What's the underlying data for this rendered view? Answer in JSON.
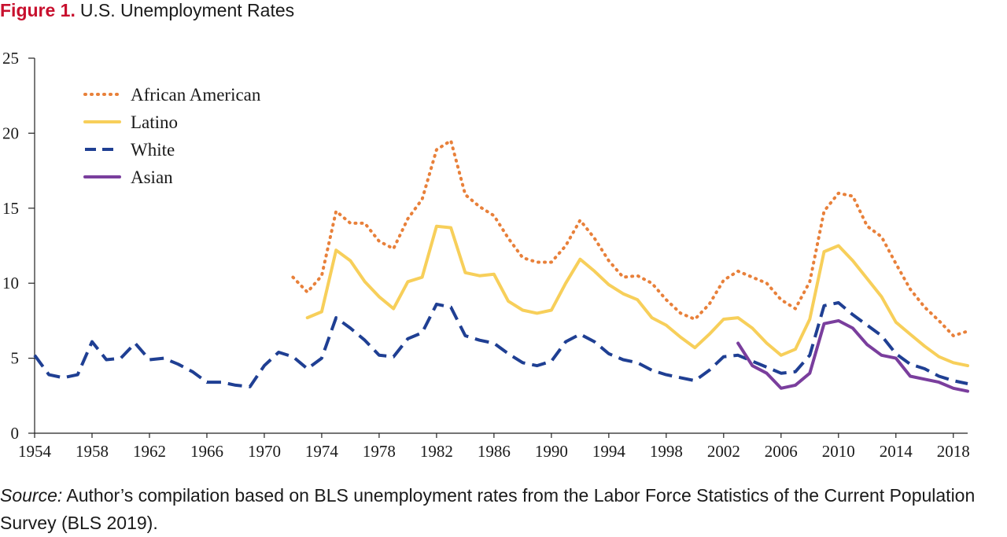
{
  "figure": {
    "label": "Figure 1.",
    "title": "U.S. Unemployment Rates"
  },
  "source": {
    "label": "Source:",
    "text": "Author’s compilation based on BLS unemployment rates from the Labor Force Statistics of the Current Population Survey (BLS 2019)."
  },
  "chart_data": {
    "type": "line",
    "title": "U.S. Unemployment Rates",
    "xlabel": "",
    "ylabel": "",
    "xlim": [
      1954,
      2019
    ],
    "ylim": [
      0,
      25
    ],
    "y_ticks": [
      0,
      5,
      10,
      15,
      20,
      25
    ],
    "x_ticks": [
      1954,
      1958,
      1962,
      1966,
      1970,
      1974,
      1978,
      1982,
      1986,
      1990,
      1994,
      1998,
      2002,
      2006,
      2010,
      2014,
      2018
    ],
    "grid": false,
    "legend_position": "top-left",
    "series": [
      {
        "name": "African American",
        "color": "#e8803a",
        "style": "dotted",
        "x": [
          1972,
          1973,
          1974,
          1975,
          1976,
          1977,
          1978,
          1979,
          1980,
          1981,
          1982,
          1983,
          1984,
          1985,
          1986,
          1987,
          1988,
          1989,
          1990,
          1991,
          1992,
          1993,
          1994,
          1995,
          1996,
          1997,
          1998,
          1999,
          2000,
          2001,
          2002,
          2003,
          2004,
          2005,
          2006,
          2007,
          2008,
          2009,
          2010,
          2011,
          2012,
          2013,
          2014,
          2015,
          2016,
          2017,
          2018,
          2019
        ],
        "values": [
          10.4,
          9.4,
          10.5,
          14.8,
          14.0,
          14.0,
          12.8,
          12.3,
          14.3,
          15.6,
          18.9,
          19.5,
          15.9,
          15.1,
          14.5,
          13.0,
          11.7,
          11.4,
          11.4,
          12.5,
          14.2,
          13.0,
          11.5,
          10.4,
          10.5,
          10.0,
          8.9,
          8.0,
          7.6,
          8.6,
          10.2,
          10.8,
          10.4,
          10.0,
          8.9,
          8.3,
          10.1,
          14.8,
          16.0,
          15.8,
          13.8,
          13.1,
          11.3,
          9.6,
          8.4,
          7.5,
          6.5,
          6.8
        ]
      },
      {
        "name": "Latino",
        "color": "#f7cf5a",
        "style": "solid",
        "x": [
          1973,
          1974,
          1975,
          1976,
          1977,
          1978,
          1979,
          1980,
          1981,
          1982,
          1983,
          1984,
          1985,
          1986,
          1987,
          1988,
          1989,
          1990,
          1991,
          1992,
          1993,
          1994,
          1995,
          1996,
          1997,
          1998,
          1999,
          2000,
          2001,
          2002,
          2003,
          2004,
          2005,
          2006,
          2007,
          2008,
          2009,
          2010,
          2011,
          2012,
          2013,
          2014,
          2015,
          2016,
          2017,
          2018,
          2019
        ],
        "values": [
          7.7,
          8.1,
          12.2,
          11.5,
          10.1,
          9.1,
          8.3,
          10.1,
          10.4,
          13.8,
          13.7,
          10.7,
          10.5,
          10.6,
          8.8,
          8.2,
          8.0,
          8.2,
          10.0,
          11.6,
          10.8,
          9.9,
          9.3,
          8.9,
          7.7,
          7.2,
          6.4,
          5.7,
          6.6,
          7.6,
          7.7,
          7.0,
          6.0,
          5.2,
          5.6,
          7.6,
          12.1,
          12.5,
          11.5,
          10.3,
          9.1,
          7.4,
          6.6,
          5.8,
          5.1,
          4.7,
          4.5
        ]
      },
      {
        "name": "White",
        "color": "#1f3f93",
        "style": "dashed",
        "x": [
          1954,
          1955,
          1956,
          1957,
          1958,
          1959,
          1960,
          1961,
          1962,
          1963,
          1964,
          1965,
          1966,
          1967,
          1968,
          1969,
          1970,
          1971,
          1972,
          1973,
          1974,
          1975,
          1976,
          1977,
          1978,
          1979,
          1980,
          1981,
          1982,
          1983,
          1984,
          1985,
          1986,
          1987,
          1988,
          1989,
          1990,
          1991,
          1992,
          1993,
          1994,
          1995,
          1996,
          1997,
          1998,
          1999,
          2000,
          2001,
          2002,
          2003,
          2004,
          2005,
          2006,
          2007,
          2008,
          2009,
          2010,
          2011,
          2012,
          2013,
          2014,
          2015,
          2016,
          2017,
          2018,
          2019
        ],
        "values": [
          5.2,
          3.9,
          3.7,
          3.9,
          6.1,
          4.9,
          5.0,
          6.0,
          4.9,
          5.0,
          4.6,
          4.1,
          3.4,
          3.4,
          3.2,
          3.1,
          4.5,
          5.4,
          5.1,
          4.3,
          5.0,
          7.7,
          7.0,
          6.2,
          5.2,
          5.1,
          6.3,
          6.7,
          8.6,
          8.4,
          6.5,
          6.2,
          6.0,
          5.3,
          4.7,
          4.5,
          4.8,
          6.1,
          6.6,
          6.1,
          5.3,
          4.9,
          4.7,
          4.2,
          3.9,
          3.7,
          3.5,
          4.2,
          5.1,
          5.2,
          4.8,
          4.4,
          4.0,
          4.1,
          5.2,
          8.5,
          8.7,
          7.9,
          7.2,
          6.5,
          5.3,
          4.6,
          4.3,
          3.8,
          3.5,
          3.3
        ]
      },
      {
        "name": "Asian",
        "color": "#7a3e9d",
        "style": "solid",
        "x": [
          2003,
          2004,
          2005,
          2006,
          2007,
          2008,
          2009,
          2010,
          2011,
          2012,
          2013,
          2014,
          2015,
          2016,
          2017,
          2018,
          2019
        ],
        "values": [
          6.0,
          4.5,
          4.0,
          3.0,
          3.2,
          4.0,
          7.3,
          7.5,
          7.0,
          5.9,
          5.2,
          5.0,
          3.8,
          3.6,
          3.4,
          3.0,
          2.8
        ]
      }
    ]
  }
}
